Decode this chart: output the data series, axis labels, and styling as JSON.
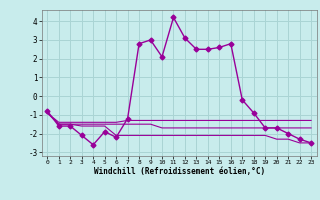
{
  "xlabel": "Windchill (Refroidissement éolien,°C)",
  "background_color": "#c8ecec",
  "grid_color": "#aad4d4",
  "line_color": "#990099",
  "xlim": [
    -0.5,
    23.5
  ],
  "ylim": [
    -3.2,
    4.6
  ],
  "yticks": [
    -3,
    -2,
    -1,
    0,
    1,
    2,
    3,
    4
  ],
  "xticks": [
    0,
    1,
    2,
    3,
    4,
    5,
    6,
    7,
    8,
    9,
    10,
    11,
    12,
    13,
    14,
    15,
    16,
    17,
    18,
    19,
    20,
    21,
    22,
    23
  ],
  "series": [
    {
      "x": [
        0,
        1,
        2,
        3,
        4,
        5,
        6,
        7,
        8,
        9,
        10,
        11,
        12,
        13,
        14,
        15,
        16,
        17,
        18,
        19,
        20,
        21,
        22,
        23
      ],
      "y": [
        -0.8,
        -1.6,
        -1.6,
        -2.1,
        -2.6,
        -1.9,
        -2.2,
        -1.2,
        2.8,
        3.0,
        2.1,
        4.2,
        3.1,
        2.5,
        2.5,
        2.6,
        2.8,
        -0.2,
        -0.9,
        -1.7,
        -1.7,
        -2.0,
        -2.3,
        -2.5
      ],
      "marker": "D",
      "markersize": 2.5,
      "linewidth": 1.0
    },
    {
      "x": [
        0,
        1,
        2,
        3,
        4,
        5,
        6,
        7,
        8,
        9,
        10,
        11,
        12,
        13,
        14,
        15,
        16,
        17,
        18,
        19,
        20,
        21,
        22,
        23
      ],
      "y": [
        -0.9,
        -1.4,
        -1.4,
        -1.4,
        -1.4,
        -1.4,
        -1.4,
        -1.3,
        -1.3,
        -1.3,
        -1.3,
        -1.3,
        -1.3,
        -1.3,
        -1.3,
        -1.3,
        -1.3,
        -1.3,
        -1.3,
        -1.3,
        -1.3,
        -1.3,
        -1.3,
        -1.3
      ],
      "marker": null,
      "linewidth": 0.8
    },
    {
      "x": [
        0,
        1,
        2,
        3,
        4,
        5,
        6,
        7,
        8,
        9,
        10,
        11,
        12,
        13,
        14,
        15,
        16,
        17,
        18,
        19,
        20,
        21,
        22,
        23
      ],
      "y": [
        -0.9,
        -1.5,
        -1.5,
        -1.5,
        -1.5,
        -1.5,
        -1.5,
        -1.5,
        -1.5,
        -1.5,
        -1.7,
        -1.7,
        -1.7,
        -1.7,
        -1.7,
        -1.7,
        -1.7,
        -1.7,
        -1.7,
        -1.7,
        -1.7,
        -1.7,
        -1.7,
        -1.7
      ],
      "marker": null,
      "linewidth": 0.8
    },
    {
      "x": [
        0,
        1,
        2,
        3,
        4,
        5,
        6,
        7,
        8,
        9,
        10,
        11,
        12,
        13,
        14,
        15,
        16,
        17,
        18,
        19,
        20,
        21,
        22,
        23
      ],
      "y": [
        -0.9,
        -1.5,
        -1.5,
        -1.6,
        -1.6,
        -1.6,
        -2.1,
        -2.1,
        -2.1,
        -2.1,
        -2.1,
        -2.1,
        -2.1,
        -2.1,
        -2.1,
        -2.1,
        -2.1,
        -2.1,
        -2.1,
        -2.1,
        -2.3,
        -2.3,
        -2.5,
        -2.5
      ],
      "marker": null,
      "linewidth": 0.8
    }
  ]
}
